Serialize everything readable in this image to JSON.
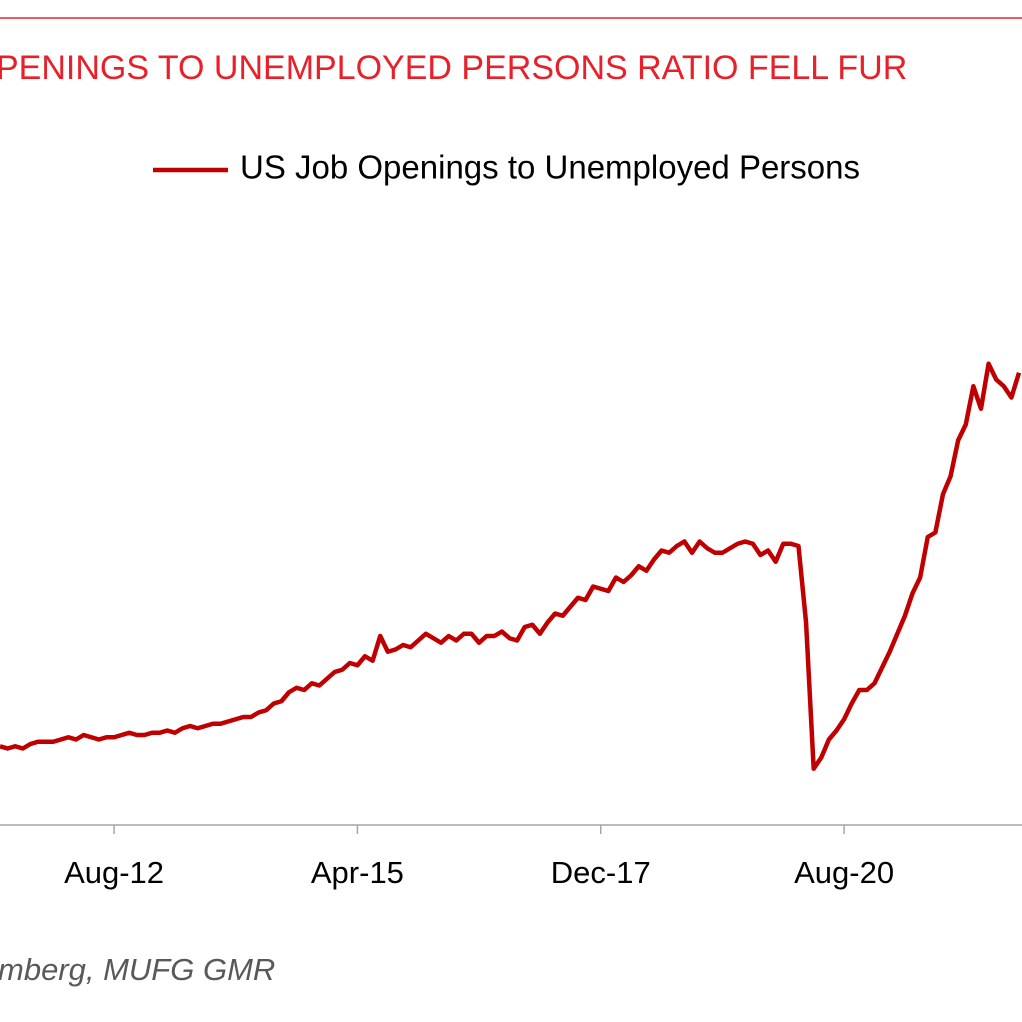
{
  "chart_data": {
    "type": "line",
    "title": "PENINGS TO UNEMPLOYED PERSONS RATIO FELL FUR",
    "source": "mberg, MUFG GMR",
    "legend": "upper right",
    "xlim": [
      "2011-05",
      "2022-07"
    ],
    "ylim": [
      -0.05,
      3.6
    ],
    "xticks": [
      {
        "value": "2012-08",
        "label": "Aug-12"
      },
      {
        "value": "2015-04",
        "label": "Apr-15"
      },
      {
        "value": "2017-12",
        "label": "Dec-17"
      },
      {
        "value": "2020-08",
        "label": "Aug-20"
      }
    ],
    "x": [
      "2011-05",
      "2011-06",
      "2011-07",
      "2011-08",
      "2011-09",
      "2011-10",
      "2011-11",
      "2011-12",
      "2012-01",
      "2012-02",
      "2012-03",
      "2012-04",
      "2012-05",
      "2012-06",
      "2012-07",
      "2012-08",
      "2012-09",
      "2012-10",
      "2012-11",
      "2012-12",
      "2013-01",
      "2013-02",
      "2013-03",
      "2013-04",
      "2013-05",
      "2013-06",
      "2013-07",
      "2013-08",
      "2013-09",
      "2013-10",
      "2013-11",
      "2013-12",
      "2014-01",
      "2014-02",
      "2014-03",
      "2014-04",
      "2014-05",
      "2014-06",
      "2014-07",
      "2014-08",
      "2014-09",
      "2014-10",
      "2014-11",
      "2014-12",
      "2015-01",
      "2015-02",
      "2015-03",
      "2015-04",
      "2015-05",
      "2015-06",
      "2015-07",
      "2015-08",
      "2015-09",
      "2015-10",
      "2015-11",
      "2015-12",
      "2016-01",
      "2016-02",
      "2016-03",
      "2016-04",
      "2016-05",
      "2016-06",
      "2016-07",
      "2016-08",
      "2016-09",
      "2016-10",
      "2016-11",
      "2016-12",
      "2017-01",
      "2017-02",
      "2017-03",
      "2017-04",
      "2017-05",
      "2017-06",
      "2017-07",
      "2017-08",
      "2017-09",
      "2017-10",
      "2017-11",
      "2017-12",
      "2018-01",
      "2018-02",
      "2018-03",
      "2018-04",
      "2018-05",
      "2018-06",
      "2018-07",
      "2018-08",
      "2018-09",
      "2018-10",
      "2018-11",
      "2018-12",
      "2019-01",
      "2019-02",
      "2019-03",
      "2019-04",
      "2019-05",
      "2019-06",
      "2019-07",
      "2019-08",
      "2019-09",
      "2019-10",
      "2019-11",
      "2019-12",
      "2020-01",
      "2020-02",
      "2020-03",
      "2020-04",
      "2020-05",
      "2020-06",
      "2020-07",
      "2020-08",
      "2020-09",
      "2020-10",
      "2020-11",
      "2020-12",
      "2021-01",
      "2021-02",
      "2021-03",
      "2021-04",
      "2021-05",
      "2021-06",
      "2021-07",
      "2021-08",
      "2021-09",
      "2021-10",
      "2021-11",
      "2021-12",
      "2022-01",
      "2022-02",
      "2022-03",
      "2022-04",
      "2022-05",
      "2022-06",
      "2022-07"
    ],
    "series": [
      {
        "name": "US Job Openings to Unemployed Persons",
        "color": "#c00000",
        "values": [
          0.3,
          0.29,
          0.3,
          0.29,
          0.31,
          0.32,
          0.32,
          0.32,
          0.33,
          0.34,
          0.33,
          0.35,
          0.34,
          0.33,
          0.34,
          0.34,
          0.35,
          0.36,
          0.35,
          0.35,
          0.36,
          0.36,
          0.37,
          0.36,
          0.38,
          0.39,
          0.38,
          0.39,
          0.4,
          0.4,
          0.41,
          0.42,
          0.43,
          0.43,
          0.45,
          0.46,
          0.49,
          0.5,
          0.54,
          0.56,
          0.55,
          0.58,
          0.57,
          0.6,
          0.63,
          0.64,
          0.67,
          0.66,
          0.7,
          0.68,
          0.79,
          0.72,
          0.73,
          0.75,
          0.74,
          0.77,
          0.8,
          0.78,
          0.76,
          0.79,
          0.77,
          0.8,
          0.8,
          0.76,
          0.79,
          0.79,
          0.81,
          0.78,
          0.77,
          0.83,
          0.84,
          0.8,
          0.85,
          0.89,
          0.88,
          0.92,
          0.96,
          0.95,
          1.01,
          1.0,
          0.99,
          1.05,
          1.03,
          1.06,
          1.1,
          1.08,
          1.13,
          1.17,
          1.16,
          1.19,
          1.21,
          1.16,
          1.21,
          1.18,
          1.16,
          1.16,
          1.18,
          1.2,
          1.21,
          1.2,
          1.15,
          1.17,
          1.12,
          1.2,
          1.2,
          1.19,
          0.85,
          0.2,
          0.25,
          0.33,
          0.37,
          0.42,
          0.49,
          0.55,
          0.55,
          0.58,
          0.65,
          0.72,
          0.8,
          0.88,
          0.98,
          1.05,
          1.23,
          1.25,
          1.42,
          1.5,
          1.66,
          1.73,
          1.9,
          1.8,
          2.0,
          1.93,
          1.9,
          1.85,
          1.96
        ]
      }
    ]
  }
}
